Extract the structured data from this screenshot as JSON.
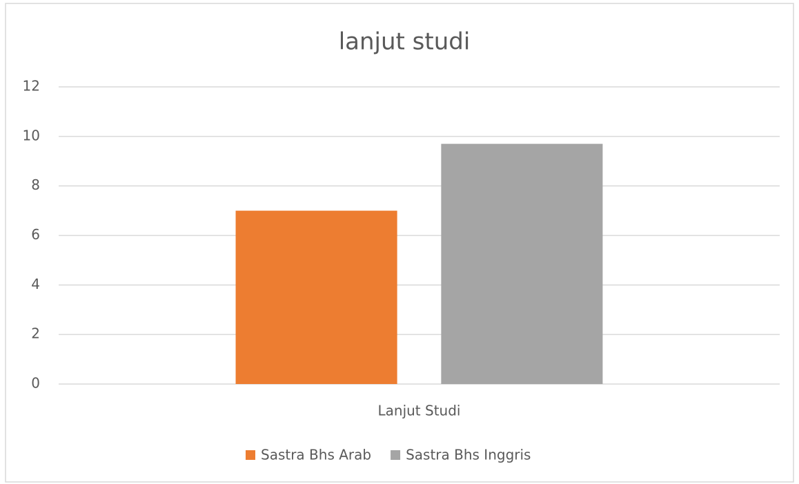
{
  "chart_data": {
    "type": "bar",
    "title": "lanjut studi",
    "categories": [
      "Lanjut Studi"
    ],
    "series": [
      {
        "name": "Sastra Bhs Arab",
        "color": "#ed7d31",
        "values": [
          7
        ]
      },
      {
        "name": "Sastra Bhs Inggris",
        "color": "#a5a5a5",
        "values": [
          9.7
        ]
      }
    ],
    "ylim": [
      0,
      12
    ],
    "yticks": [
      0,
      2,
      4,
      6,
      8,
      10,
      12
    ],
    "grid": true,
    "legend": "bottom"
  }
}
